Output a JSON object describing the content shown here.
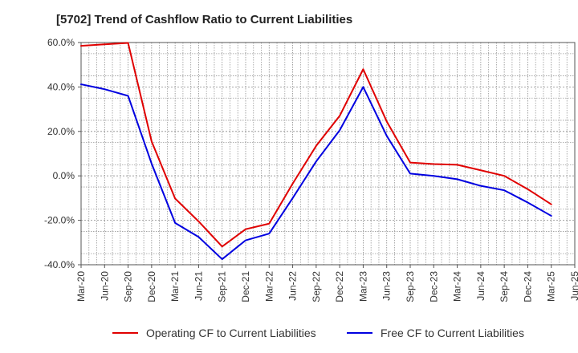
{
  "chart_data": {
    "type": "line",
    "title": "[5702]  Trend of Cashflow Ratio to Current Liabilities",
    "xlabel": "",
    "ylabel": "",
    "ylim": [
      -40,
      60
    ],
    "yticks": [
      "60.0%",
      "40.0%",
      "20.0%",
      "0.0%",
      "-20.0%",
      "-40.0%"
    ],
    "ytick_values": [
      60,
      40,
      20,
      0,
      -20,
      -40
    ],
    "categories": [
      "Mar-20",
      "Jun-20",
      "Sep-20",
      "Dec-20",
      "Mar-21",
      "Jun-21",
      "Sep-21",
      "Dec-21",
      "Mar-22",
      "Jun-22",
      "Sep-22",
      "Dec-22",
      "Mar-23",
      "Jun-23",
      "Sep-23",
      "Dec-23",
      "Mar-24",
      "Jun-24",
      "Sep-24",
      "Dec-24",
      "Mar-25",
      "Jun-25"
    ],
    "grid": true,
    "legend_position": "bottom",
    "series": [
      {
        "name": "Operating CF to Current Liabilities",
        "color": "#e00000",
        "values": [
          58.5,
          59.2,
          59.8,
          15.5,
          -10.2,
          -20.5,
          -31.8,
          -24.0,
          -21.5,
          -3.5,
          13.5,
          27.0,
          48.0,
          24.5,
          6.0,
          5.3,
          5.0,
          2.5,
          0.0,
          -6.0,
          -12.8,
          null
        ]
      },
      {
        "name": "Free CF to Current Liabilities",
        "color": "#0000e0",
        "values": [
          41.2,
          39.0,
          36.0,
          5.5,
          -21.2,
          -27.5,
          -37.5,
          -29.0,
          -26.0,
          -10.0,
          6.5,
          20.5,
          40.0,
          18.0,
          1.0,
          0.0,
          -1.5,
          -4.5,
          -6.5,
          -12.0,
          -18.0,
          null
        ]
      }
    ]
  }
}
